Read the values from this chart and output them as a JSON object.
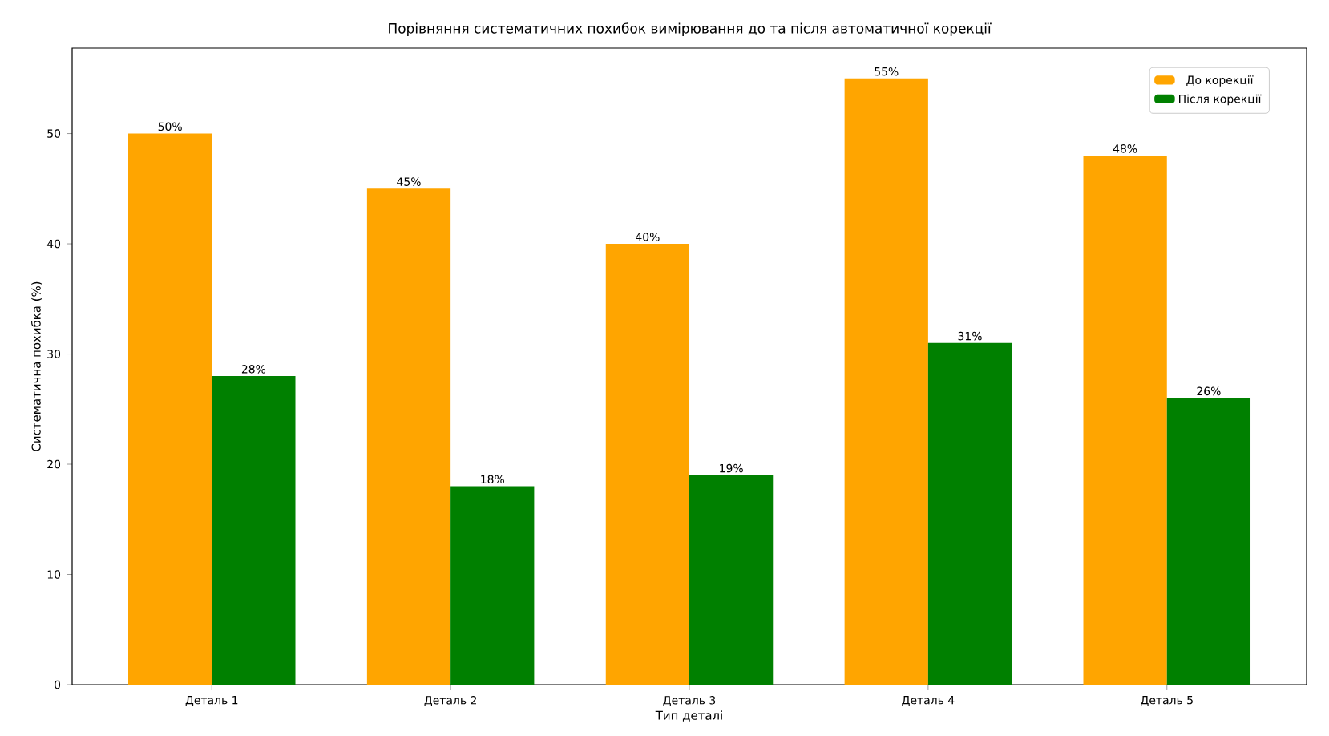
{
  "chart_data": {
    "type": "bar",
    "title": "Порівняння систематичних похибок вимірювання до та після автоматичної корекції",
    "xlabel": "Тип деталі",
    "ylabel": "Систематична похибка (%)",
    "categories": [
      "Деталь 1",
      "Деталь 2",
      "Деталь 3",
      "Деталь 4",
      "Деталь 5"
    ],
    "series": [
      {
        "name": "До корекції",
        "color": "#ffa500",
        "values": [
          50,
          45,
          40,
          55,
          48
        ],
        "value_labels": [
          "50%",
          "45%",
          "40%",
          "55%",
          "48%"
        ]
      },
      {
        "name": "Після корекції",
        "color": "#008000",
        "values": [
          28,
          18,
          19,
          31,
          26
        ],
        "value_labels": [
          "28%",
          "18%",
          "19%",
          "31%",
          "26%"
        ]
      }
    ],
    "ylim": [
      0,
      57.75
    ],
    "yticks": [
      0,
      10,
      20,
      30,
      40,
      50
    ],
    "grid": false,
    "legend": "top right"
  }
}
